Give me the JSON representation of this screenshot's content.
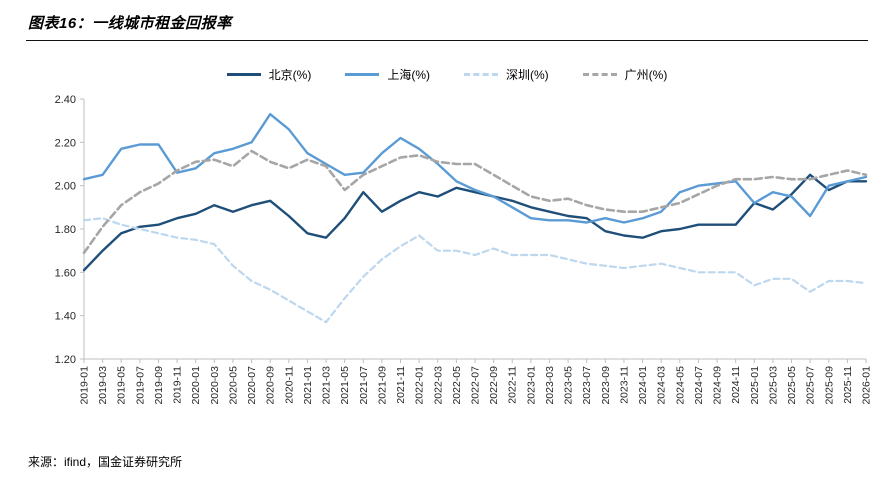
{
  "header": {
    "title": "图表16：一线城市租金回报率"
  },
  "footer": {
    "source": "来源：ifind，国金证券研究所"
  },
  "chart_data": {
    "type": "line",
    "title": "一线城市租金回报率",
    "xlabel": "",
    "ylabel": "",
    "ylim": [
      1.2,
      2.4
    ],
    "y_ticks": [
      1.2,
      1.4,
      1.6,
      1.8,
      2.0,
      2.2,
      2.4
    ],
    "grid": false,
    "legend_position": "top-center",
    "axis_color": "#BFBFBF",
    "categories": [
      "2019-01",
      "2019-03",
      "2019-05",
      "2019-07",
      "2019-09",
      "2019-11",
      "2020-01",
      "2020-03",
      "2020-05",
      "2020-07",
      "2020-09",
      "2020-11",
      "2021-01",
      "2021-03",
      "2021-05",
      "2021-07",
      "2021-09",
      "2021-11",
      "2022-01",
      "2022-03",
      "2022-05",
      "2022-07",
      "2022-09",
      "2022-11",
      "2023-01",
      "2023-03",
      "2023-05",
      "2023-07",
      "2023-09",
      "2023-11",
      "2024-01",
      "2024-03",
      "2024-05",
      "2024-07",
      "2024-09",
      "2024-11",
      "2025-01",
      "2025-03",
      "2025-05",
      "2025-07",
      "2025-09",
      "2025-11",
      "2026-01"
    ],
    "series": [
      {
        "key": "beijing",
        "name": "北京(%)",
        "color": "#1F4E79",
        "dash": null,
        "width": 2.4,
        "values": [
          1.61,
          1.7,
          1.78,
          1.81,
          1.82,
          1.85,
          1.87,
          1.91,
          1.88,
          1.91,
          1.93,
          1.86,
          1.78,
          1.76,
          1.85,
          1.97,
          1.88,
          1.93,
          1.97,
          1.95,
          1.99,
          1.97,
          1.95,
          1.93,
          1.9,
          1.88,
          1.86,
          1.85,
          1.79,
          1.77,
          1.76,
          1.79,
          1.8,
          1.82,
          1.82,
          1.82,
          1.92,
          1.89,
          1.96,
          2.05,
          1.98,
          2.02,
          2.02
        ]
      },
      {
        "key": "shanghai",
        "name": "上海(%)",
        "color": "#5B9BD5",
        "dash": null,
        "width": 2.4,
        "values": [
          2.03,
          2.05,
          2.17,
          2.19,
          2.19,
          2.06,
          2.08,
          2.15,
          2.17,
          2.2,
          2.33,
          2.26,
          2.15,
          2.1,
          2.05,
          2.06,
          2.15,
          2.22,
          2.17,
          2.1,
          2.02,
          1.98,
          1.95,
          1.9,
          1.85,
          1.84,
          1.84,
          1.83,
          1.85,
          1.83,
          1.85,
          1.88,
          1.97,
          2.0,
          2.01,
          2.02,
          1.92,
          1.97,
          1.95,
          1.86,
          2.0,
          2.02,
          2.04
        ]
      },
      {
        "key": "shenzhen",
        "name": "深圳(%)",
        "color": "#BDD7EE",
        "dash": [
          6,
          4
        ],
        "width": 2.2,
        "values": [
          1.84,
          1.85,
          1.82,
          1.8,
          1.78,
          1.76,
          1.75,
          1.73,
          1.63,
          1.56,
          1.52,
          1.47,
          1.42,
          1.37,
          1.48,
          1.58,
          1.66,
          1.72,
          1.77,
          1.7,
          1.7,
          1.68,
          1.71,
          1.68,
          1.68,
          1.68,
          1.66,
          1.64,
          1.63,
          1.62,
          1.63,
          1.64,
          1.62,
          1.6,
          1.6,
          1.6,
          1.54,
          1.57,
          1.57,
          1.51,
          1.56,
          1.56,
          1.55
        ]
      },
      {
        "key": "guangzhou",
        "name": "广州(%)",
        "color": "#A6A6A6",
        "dash": [
          7,
          4
        ],
        "width": 2.6,
        "values": [
          1.69,
          1.81,
          1.91,
          1.97,
          2.01,
          2.07,
          2.11,
          2.12,
          2.09,
          2.16,
          2.11,
          2.08,
          2.12,
          2.09,
          1.98,
          2.05,
          2.09,
          2.13,
          2.14,
          2.11,
          2.1,
          2.1,
          2.05,
          2.0,
          1.95,
          1.93,
          1.94,
          1.91,
          1.89,
          1.88,
          1.88,
          1.9,
          1.92,
          1.96,
          2.0,
          2.03,
          2.03,
          2.04,
          2.03,
          2.03,
          2.05,
          2.07,
          2.05
        ]
      }
    ]
  }
}
